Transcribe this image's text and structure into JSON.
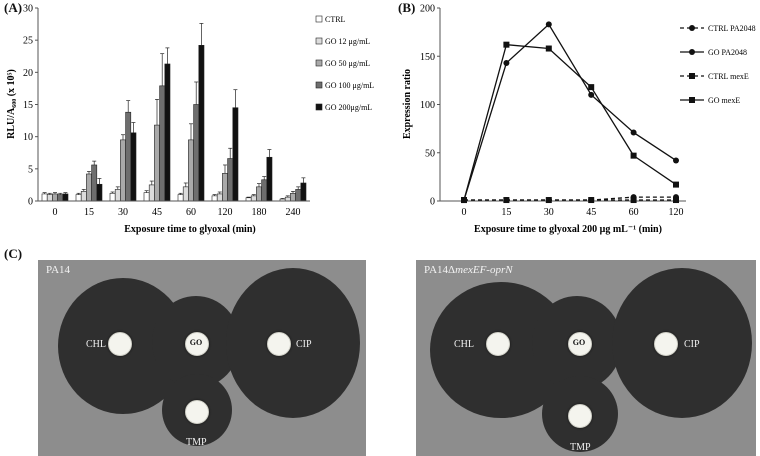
{
  "panels": {
    "a_label": "(A)",
    "b_label": "(B)",
    "c_label": "(C)"
  },
  "chart_data": [
    {
      "type": "bar",
      "ylabel": "RLU/A₆₀₀ (x 10⁵)",
      "xlabel": "Exposure time to glyoxal (min)",
      "ylim": [
        0,
        30
      ],
      "yticks": [
        "0",
        "5",
        "10",
        "15",
        "20",
        "25",
        "30"
      ],
      "categories": [
        "0",
        "15",
        "30",
        "45",
        "60",
        "120",
        "180",
        "240"
      ],
      "legend_position": "right",
      "series": [
        {
          "name": "CTRL",
          "color": "#ffffff",
          "values": [
            1.1,
            1.0,
            1.2,
            1.3,
            1.0,
            0.8,
            0.5,
            0.3
          ],
          "errors": [
            0.2,
            0.2,
            0.2,
            0.3,
            0.2,
            0.2,
            0.1,
            0.1
          ]
        },
        {
          "name": "GO 12 μg/mL",
          "color": "#dcdcdc",
          "values": [
            1.0,
            1.5,
            1.8,
            2.5,
            2.2,
            1.1,
            0.8,
            0.6
          ],
          "errors": [
            0.2,
            0.3,
            0.4,
            0.6,
            0.6,
            0.3,
            0.2,
            0.2
          ]
        },
        {
          "name": "GO 50 μg/mL",
          "color": "#a9a9a9",
          "values": [
            1.1,
            4.2,
            9.5,
            11.8,
            9.5,
            4.3,
            2.2,
            1.2
          ],
          "errors": [
            0.2,
            0.4,
            0.8,
            4.0,
            2.5,
            1.3,
            0.5,
            0.3
          ]
        },
        {
          "name": "GO 100 μg/mL",
          "color": "#6e6e6e",
          "values": [
            1.0,
            5.6,
            13.8,
            17.9,
            15.0,
            6.6,
            3.3,
            1.8
          ],
          "errors": [
            0.2,
            0.6,
            1.8,
            5.0,
            3.5,
            1.6,
            0.5,
            0.4
          ]
        },
        {
          "name": "GO 200μg/mL",
          "color": "#111111",
          "values": [
            1.1,
            2.6,
            10.6,
            21.3,
            24.2,
            14.5,
            6.8,
            2.8
          ],
          "errors": [
            0.2,
            0.9,
            1.6,
            2.5,
            3.4,
            2.8,
            1.2,
            0.8
          ]
        }
      ]
    },
    {
      "type": "line",
      "ylabel": "Expression ratio",
      "xlabel": "Exposure time to glyoxal  200 μg mL⁻¹ (min)",
      "ylim": [
        0,
        200
      ],
      "yticks": [
        "0",
        "50",
        "100",
        "150",
        "200"
      ],
      "x": [
        "0",
        "15",
        "30",
        "45",
        "60",
        "120"
      ],
      "legend_position": "right",
      "series": [
        {
          "name": "CTRL PA2048",
          "marker": "circle",
          "dashed": true,
          "values": [
            1,
            1,
            1,
            1,
            4,
            4
          ]
        },
        {
          "name": "GO PA2048",
          "marker": "circle",
          "dashed": false,
          "values": [
            1,
            143,
            183,
            110,
            71,
            42
          ]
        },
        {
          "name": "CTRL mexE",
          "marker": "square",
          "dashed": true,
          "values": [
            1,
            1,
            1,
            1,
            1,
            1
          ]
        },
        {
          "name": "GO mexE",
          "marker": "square",
          "dashed": false,
          "values": [
            1,
            162,
            158,
            118,
            47,
            17
          ]
        }
      ]
    }
  ],
  "plates": [
    {
      "title_main": "PA14",
      "title_italic": "",
      "disks": {
        "chl": "CHL",
        "go": "GO",
        "cip": "CIP",
        "tmp": "TMP"
      }
    },
    {
      "title_main": "PA14Δ",
      "title_italic": "mexEF-oprN",
      "disks": {
        "chl": "CHL",
        "go": "GO",
        "cip": "CIP",
        "tmp": "TMP"
      }
    }
  ]
}
